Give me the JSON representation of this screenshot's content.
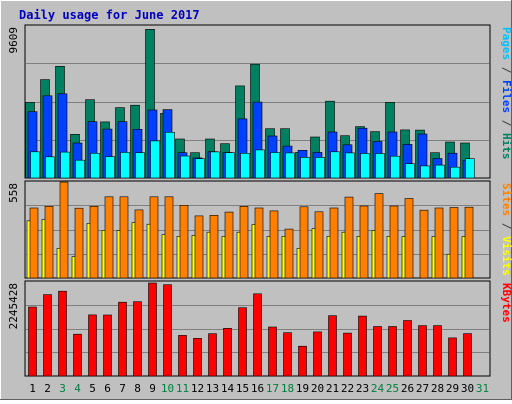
{
  "chart_data": {
    "type": "bar",
    "title": "Daily usage for June 2017",
    "categories": [
      "1",
      "2",
      "3",
      "4",
      "5",
      "6",
      "7",
      "8",
      "9",
      "10",
      "11",
      "12",
      "13",
      "14",
      "15",
      "16",
      "17",
      "18",
      "19",
      "20",
      "21",
      "22",
      "23",
      "24",
      "25",
      "26",
      "27",
      "28",
      "29",
      "30",
      "31"
    ],
    "weekend_days": [
      "3",
      "4",
      "10",
      "11",
      "17",
      "18",
      "24",
      "25",
      "31"
    ],
    "panels": [
      {
        "name": "hits-files-pages",
        "ymax_label": "9609",
        "ymax": 9609,
        "ylabel_parts": [
          {
            "text": "Pages",
            "color": "#00c0ff"
          },
          {
            "text": " / ",
            "color": "#404040"
          },
          {
            "text": "Files",
            "color": "#0040ff"
          },
          {
            "text": " / ",
            "color": "#404040"
          },
          {
            "text": "Hits",
            "color": "#008060"
          }
        ],
        "series": [
          {
            "name": "Hits",
            "color": "#008060",
            "values": [
              4810,
              6260,
              7110,
              2780,
              4980,
              3570,
              4480,
              4630,
              9460,
              4110,
              2480,
              1610,
              2480,
              2180,
              5860,
              7240,
              3140,
              3140,
              1630,
              2610,
              4890,
              2690,
              3270,
              2950,
              4820,
              3060,
              3050,
              1610,
              2290,
              2230,
              0
            ]
          },
          {
            "name": "Files",
            "color": "#0040ff",
            "values": [
              4220,
              5230,
              5360,
              2230,
              3580,
              3110,
              3580,
              3100,
              4330,
              4350,
              1610,
              1280,
              1680,
              1620,
              3760,
              4830,
              2670,
              2030,
              1760,
              1630,
              2930,
              2110,
              3170,
              2330,
              2930,
              2140,
              2800,
              1240,
              1580,
              1130,
              0
            ]
          },
          {
            "name": "Pages",
            "color": "#00ffff",
            "values": [
              1670,
              1350,
              1650,
              1130,
              1570,
              1360,
              1630,
              1610,
              2360,
              2910,
              1400,
              1230,
              1660,
              1610,
              1570,
              1790,
              1620,
              1600,
              1310,
              1310,
              1670,
              1600,
              1560,
              1560,
              1390,
              910,
              770,
              820,
              690,
              1230,
              0
            ]
          }
        ]
      },
      {
        "name": "visits-sites",
        "ymax_label": "558",
        "ymax": 558,
        "ylabel_parts": [
          {
            "text": "Sites",
            "color": "#ff8000"
          },
          {
            "text": " / ",
            "color": "#404040"
          },
          {
            "text": "Visits",
            "color": "#ffff00"
          }
        ],
        "series": [
          {
            "name": "Visits",
            "color": "#ffff00",
            "values": [
              336,
              343,
              174,
              125,
              321,
              280,
              279,
              325,
              316,
              255,
              245,
              250,
              269,
              244,
              269,
              314,
              244,
              245,
              174,
              290,
              245,
              269,
              245,
              279,
              245,
              244,
              0,
              244,
              140,
              244,
              0
            ]
          },
          {
            "name": "Sites",
            "color": "#ff8000",
            "values": [
              411,
              421,
              563,
              410,
              421,
              477,
              477,
              400,
              477,
              477,
              427,
              365,
              368,
              387,
              421,
              411,
              394,
              287,
              418,
              389,
              411,
              475,
              423,
              496,
              423,
              467,
              398,
              411,
              414,
              416,
              0
            ]
          }
        ]
      },
      {
        "name": "kbytes",
        "ymax_label": "2245428",
        "ymax": 2245428,
        "ylabel_parts": [
          {
            "text": "KBytes",
            "color": "#ff0000"
          }
        ],
        "series": [
          {
            "name": "KBytes",
            "color": "#ff0000",
            "values": [
              1665630,
              1966070,
              2048550,
              1010270,
              1474720,
              1473440,
              1782070,
              1794550,
              2245428,
              2204700,
              980460,
              910260,
              1022010,
              1150790,
              1649750,
              1985440,
              1183240,
              1046150,
              719020,
              1064770,
              1455240,
              1036780,
              1445550,
              1195430,
              1195520,
              1339090,
              1217650,
              1216130,
              921010,
              1024690,
              0
            ]
          }
        ]
      }
    ]
  }
}
